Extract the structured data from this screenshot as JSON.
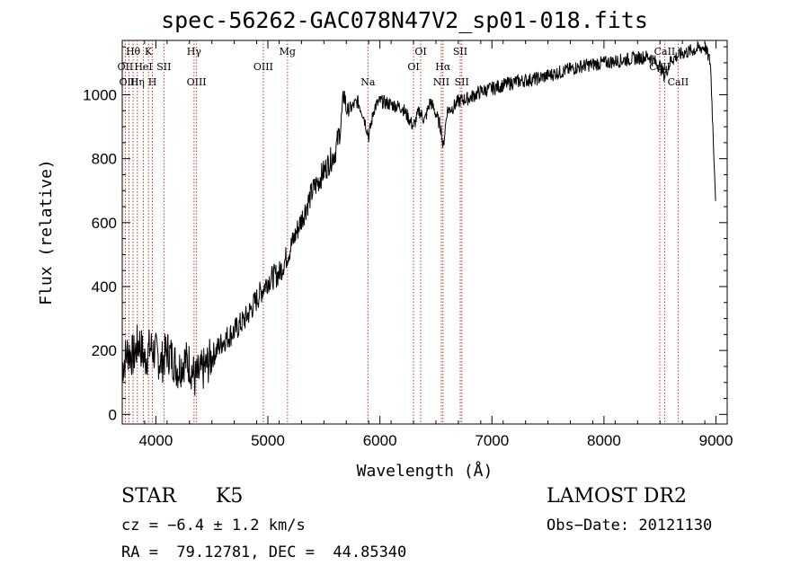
{
  "chart_data": {
    "type": "line",
    "title": "spec-56262-GAC078N47V2_sp01-018.fits",
    "xlabel": "Wavelength (Å)",
    "ylabel": "Flux (relative)",
    "xlim": [
      3700,
      9100
    ],
    "ylim": [
      -30,
      1170
    ],
    "xticks": [
      4000,
      5000,
      6000,
      7000,
      8000,
      9000
    ],
    "yticks": [
      0,
      200,
      400,
      600,
      800,
      1000
    ],
    "grid": false,
    "line_color": "#000000",
    "marker_line_color": "#c0392b",
    "series": [
      {
        "x": [
          3700,
          3750,
          3800,
          3850,
          3900,
          3950,
          4000,
          4050,
          4100,
          4150,
          4200,
          4250,
          4300,
          4350,
          4400,
          4450,
          4500,
          4600,
          4700,
          4800,
          4900,
          5000,
          5100,
          5200,
          5300,
          5400,
          5500,
          5600,
          5650,
          5680,
          5700,
          5750,
          5800,
          5850,
          5900,
          5950,
          6000,
          6100,
          6200,
          6250,
          6300,
          6350,
          6400,
          6450,
          6500,
          6550,
          6563,
          6600,
          6650,
          6700,
          6800,
          6900,
          7000,
          7200,
          7400,
          7600,
          7800,
          8000,
          8200,
          8400,
          8500,
          8540,
          8600,
          8700,
          8800,
          8900,
          8950,
          9000
        ],
        "values": [
          150,
          200,
          180,
          230,
          170,
          210,
          190,
          160,
          200,
          175,
          140,
          170,
          160,
          110,
          130,
          150,
          180,
          230,
          260,
          300,
          360,
          420,
          440,
          520,
          610,
          700,
          760,
          820,
          900,
          1010,
          950,
          960,
          980,
          940,
          870,
          960,
          980,
          970,
          960,
          930,
          900,
          950,
          920,
          980,
          940,
          890,
          830,
          950,
          960,
          980,
          990,
          1010,
          1020,
          1040,
          1050,
          1070,
          1090,
          1100,
          1110,
          1120,
          1090,
          1060,
          1110,
          1130,
          1140,
          1150,
          1100,
          650
        ]
      }
    ],
    "lines": [
      {
        "label": "Hθ",
        "wl": 3797,
        "row": "top"
      },
      {
        "label": "K",
        "wl": 3934,
        "row": "top"
      },
      {
        "label": "Hγ",
        "wl": 4341,
        "row": "top"
      },
      {
        "label": "Mg",
        "wl": 5175,
        "row": "top"
      },
      {
        "label": "OI",
        "wl": 6364,
        "row": "top"
      },
      {
        "label": "SII",
        "wl": 6717,
        "row": "top"
      },
      {
        "label": "CaII",
        "wl": 8542,
        "row": "top"
      },
      {
        "label": "OII",
        "wl": 3727,
        "row": "mid"
      },
      {
        "label": "HeI",
        "wl": 3889,
        "row": "mid"
      },
      {
        "label": "SII",
        "wl": 4072,
        "row": "mid"
      },
      {
        "label": "OIII",
        "wl": 4959,
        "row": "mid"
      },
      {
        "label": "OI",
        "wl": 6300,
        "row": "mid"
      },
      {
        "label": "Hα",
        "wl": 6563,
        "row": "mid"
      },
      {
        "label": "CaII",
        "wl": 8498,
        "row": "mid"
      },
      {
        "label": "OIII",
        "wl": 3760,
        "row": "low"
      },
      {
        "label": "Hη",
        "wl": 3835,
        "row": "low"
      },
      {
        "label": "H",
        "wl": 3969,
        "row": "low"
      },
      {
        "label": "OIII",
        "wl": 4363,
        "row": "low"
      },
      {
        "label": "Na",
        "wl": 5893,
        "row": "low"
      },
      {
        "label": "NII",
        "wl": 6548,
        "row": "low"
      },
      {
        "label": "SII",
        "wl": 6731,
        "row": "low"
      },
      {
        "label": "CaII",
        "wl": 8662,
        "row": "low"
      }
    ]
  },
  "footer": {
    "object_class": "STAR",
    "subclass": "K5",
    "survey": "LAMOST DR2",
    "cz": "cz = −6.4 ± 1.2 km/s",
    "obs_date": "Obs−Date: 20121130",
    "coords": "RA =  79.12781, DEC =  44.85340"
  }
}
